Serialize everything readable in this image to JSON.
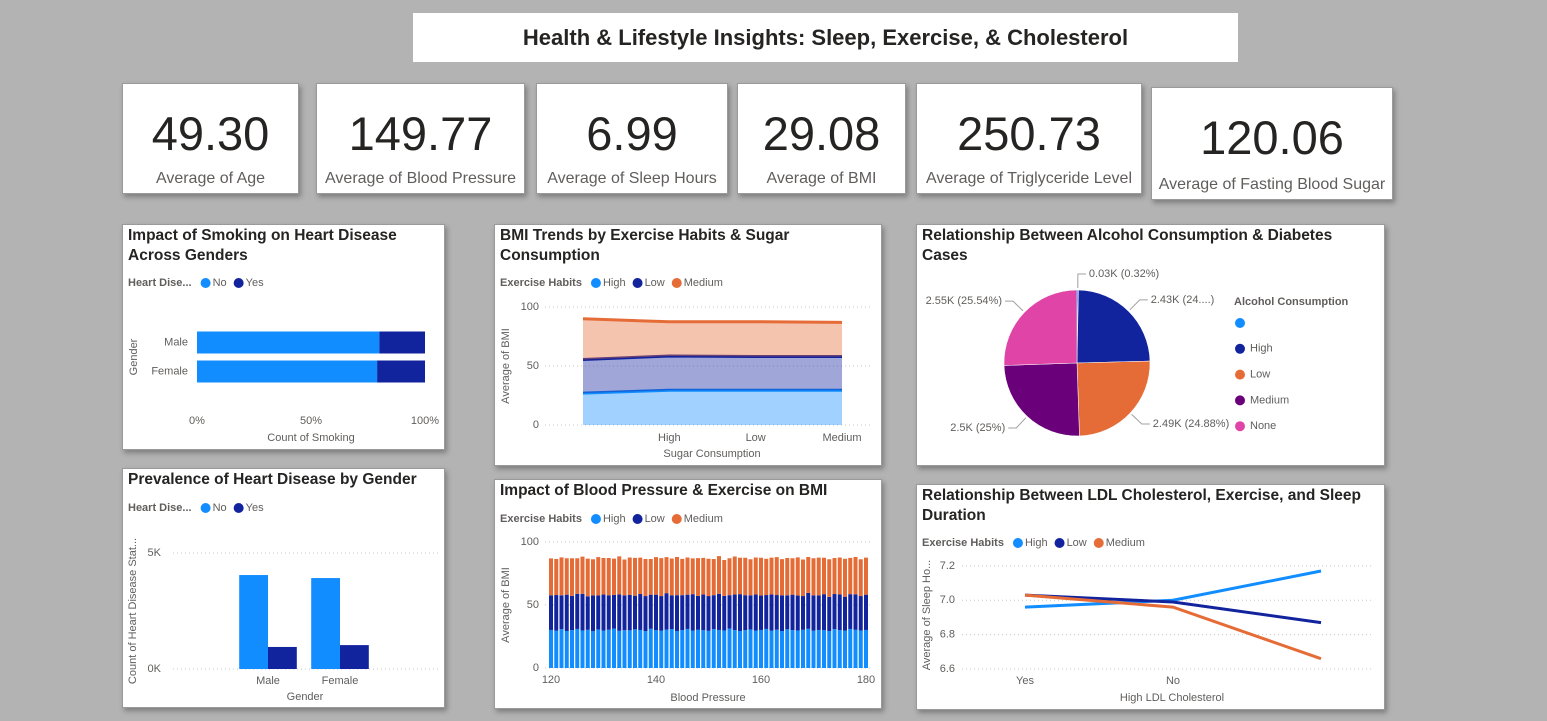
{
  "header": {
    "title": "Health & Lifestyle Insights: Sleep, Exercise, & Cholesterol"
  },
  "kpis": [
    {
      "value": "49.30",
      "label": "Average of Age"
    },
    {
      "value": "149.77",
      "label": "Average of Blood Pressure"
    },
    {
      "value": "6.99",
      "label": "Average of Sleep Hours"
    },
    {
      "value": "29.08",
      "label": "Average of BMI"
    },
    {
      "value": "250.73",
      "label": "Average of Triglyceride Level"
    },
    {
      "value": "120.06",
      "label": "Average of Fasting Blood Sugar"
    }
  ],
  "chart_data": [
    {
      "type": "bar",
      "orientation": "horizontal",
      "stacked": true,
      "title": "Impact of Smoking on Heart Disease Across Genders",
      "legend_title": "Heart Dise...",
      "categories": [
        "Male",
        "Female"
      ],
      "series": [
        {
          "name": "No",
          "color": "#118dff",
          "values": [
            80,
            79
          ]
        },
        {
          "name": "Yes",
          "color": "#12239e",
          "values": [
            20,
            21
          ]
        }
      ],
      "xlim": [
        0,
        100
      ],
      "xticks": [
        {
          "value": 0,
          "label": "0%"
        },
        {
          "value": 50,
          "label": "50%"
        },
        {
          "value": 100,
          "label": "100%"
        }
      ],
      "x_label": "Count of Smoking",
      "y_label": "Gender",
      "grid": false
    },
    {
      "type": "area",
      "stacked": true,
      "title": "BMI Trends by Exercise Habits & Sugar Consumption",
      "legend_title": "Exercise Habits",
      "categories": [
        null,
        "High",
        "Low",
        "Medium"
      ],
      "series": [
        {
          "name": "High",
          "color": "#118dff",
          "values": [
            27,
            29.5,
            29.5,
            29.5
          ]
        },
        {
          "name": "Low",
          "color": "#12239e",
          "values": [
            28.5,
            29,
            28.5,
            28.5
          ]
        },
        {
          "name": "Medium",
          "color": "#e66c37",
          "values": [
            34.5,
            29,
            29.5,
            29
          ]
        }
      ],
      "ylim": [
        0,
        100
      ],
      "yticks": [
        0,
        50,
        100
      ],
      "x_label": "Sugar Consumption",
      "y_label": "Average of BMI",
      "grid": true
    },
    {
      "type": "pie",
      "title": "Relationship Between Alcohol Consumption & Diabetes Cases",
      "legend_title": "Alcohol Consumption",
      "categories": [
        null,
        "High",
        "Low",
        "Medium",
        "None"
      ],
      "values": [
        0.32,
        24.26,
        24.88,
        25,
        25.54
      ],
      "value_labels": [
        "0.03K (0.32%)",
        "2.43K (24....)",
        "2.49K (24.88%)",
        "2.5K (25%)",
        "2.55K (25.54%)"
      ],
      "colors": [
        "#118dff",
        "#12239e",
        "#e66c37",
        "#6b007b",
        "#e044a7"
      ]
    },
    {
      "type": "bar",
      "orientation": "vertical",
      "stacked": false,
      "title": "Prevalence of Heart Disease by Gender",
      "legend_title": "Heart Dise...",
      "categories": [
        "Male",
        "Female"
      ],
      "series": [
        {
          "name": "No",
          "color": "#118dff",
          "values": [
            4050,
            3920
          ]
        },
        {
          "name": "Yes",
          "color": "#12239e",
          "values": [
            950,
            1030
          ]
        }
      ],
      "ylim": [
        0,
        5500
      ],
      "yticks": [
        {
          "value": 0,
          "label": "0K"
        },
        {
          "value": 5000,
          "label": "5K"
        }
      ],
      "x_label": "Gender",
      "y_label": "Count of Heart Disease Stat...",
      "grid": true
    },
    {
      "type": "bar",
      "orientation": "vertical",
      "stacked": true,
      "title": "Impact of Blood Pressure & Exercise on BMI",
      "legend_title": "Exercise Habits",
      "x": [
        120,
        121,
        122,
        123,
        124,
        125,
        126,
        127,
        128,
        129,
        130,
        131,
        132,
        133,
        134,
        135,
        136,
        137,
        138,
        139,
        140,
        141,
        142,
        143,
        144,
        145,
        146,
        147,
        148,
        149,
        150,
        151,
        152,
        153,
        154,
        155,
        156,
        157,
        158,
        159,
        160,
        161,
        162,
        163,
        164,
        165,
        166,
        167,
        168,
        169,
        170,
        171,
        172,
        173,
        174,
        175,
        176,
        177,
        178,
        179,
        180
      ],
      "series": [
        {
          "name": "High",
          "color": "#118dff",
          "values": [
            30.2,
            29.6,
            30.8,
            29.4,
            30.1,
            31.0,
            29.8,
            30.3,
            29.2,
            30.6,
            29.7,
            30.4,
            31.2,
            29.5,
            30.0,
            29.9,
            30.7,
            30.2,
            29.3,
            31.1,
            30.0,
            29.6,
            30.4,
            30.9,
            29.4,
            30.1,
            31.0,
            29.7,
            30.3,
            30.0,
            29.5,
            30.8,
            30.2,
            29.8,
            31.3,
            30.1,
            29.4,
            30.0,
            30.6,
            29.7,
            30.2,
            31.0,
            29.6,
            30.4,
            29.3,
            30.7,
            30.1,
            29.8,
            30.3,
            31.1,
            29.6,
            30.2,
            30.0,
            29.4,
            30.8,
            30.1,
            29.7,
            31.0,
            30.3,
            29.8,
            30.2
          ]
        },
        {
          "name": "Low",
          "color": "#12239e",
          "values": [
            27.5,
            28.3,
            26.9,
            28.8,
            27.2,
            27.9,
            29.1,
            26.6,
            28.4,
            27.0,
            28.6,
            27.3,
            26.8,
            28.9,
            27.6,
            28.1,
            26.7,
            28.5,
            27.8,
            27.1,
            28.2,
            27.5,
            29.0,
            26.8,
            28.4,
            27.7,
            27.2,
            28.9,
            26.9,
            28.3,
            27.6,
            27.0,
            28.7,
            27.4,
            26.5,
            28.2,
            29.2,
            27.8,
            27.1,
            28.6,
            27.3,
            26.9,
            28.8,
            27.5,
            28.4,
            27.0,
            28.1,
            27.7,
            26.8,
            28.5,
            28.0,
            27.4,
            28.6,
            27.1,
            27.9,
            28.3,
            26.9,
            27.6,
            28.2,
            27.3,
            28.0
          ]
        },
        {
          "name": "Medium",
          "color": "#e66c37",
          "values": [
            29.3,
            28.6,
            30.1,
            28.9,
            29.8,
            28.2,
            29.5,
            29.9,
            28.7,
            30.4,
            29.0,
            29.6,
            28.8,
            30.2,
            28.5,
            29.7,
            30.0,
            28.9,
            29.4,
            28.3,
            29.8,
            30.1,
            28.6,
            29.2,
            30.3,
            28.8,
            29.5,
            28.4,
            30.0,
            29.1,
            29.6,
            28.7,
            29.9,
            28.5,
            29.3,
            30.2,
            28.9,
            29.7,
            28.6,
            29.4,
            30.0,
            28.8,
            29.2,
            30.1,
            28.7,
            29.6,
            28.9,
            30.3,
            29.0,
            28.5,
            29.5,
            30.0,
            28.9,
            29.8,
            28.6,
            29.3,
            30.1,
            28.8,
            29.6,
            29.2,
            29.4
          ]
        }
      ],
      "xlim": [
        120,
        180
      ],
      "xticks": [
        120,
        140,
        160,
        180
      ],
      "ylim": [
        0,
        100
      ],
      "yticks": [
        0,
        50,
        100
      ],
      "x_label": "Blood Pressure",
      "y_label": "Average of BMI",
      "grid": true
    },
    {
      "type": "line",
      "title": "Relationship Between LDL Cholesterol, Exercise, and Sleep Duration",
      "legend_title": "Exercise Habits",
      "categories": [
        "Yes",
        "No",
        null
      ],
      "series": [
        {
          "name": "High",
          "color": "#118dff",
          "values": [
            6.96,
            7.0,
            7.17
          ]
        },
        {
          "name": "Low",
          "color": "#12239e",
          "values": [
            7.03,
            6.99,
            6.87
          ]
        },
        {
          "name": "Medium",
          "color": "#e66c37",
          "values": [
            7.03,
            6.96,
            6.66
          ]
        }
      ],
      "ylim": [
        6.6,
        7.24
      ],
      "yticks": [
        6.6,
        6.8,
        {
          "value": 7,
          "label": "7.0"
        },
        7.2
      ],
      "x_label": "High LDL Cholesterol",
      "y_label": "Average of Sleep Ho...",
      "grid": true
    }
  ]
}
